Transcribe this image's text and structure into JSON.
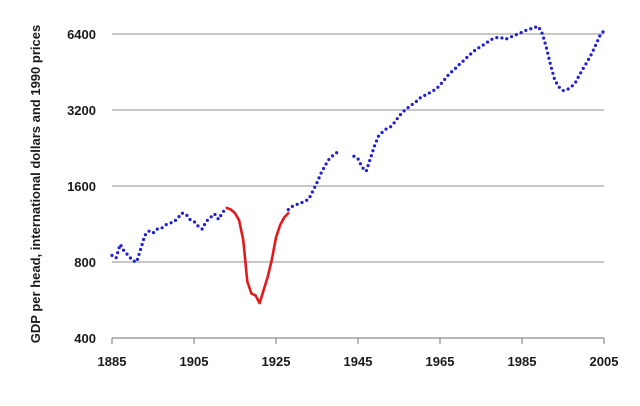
{
  "chart_data": {
    "type": "line",
    "title": "",
    "xlabel": "",
    "ylabel": "GDP per head, international dollars and 1990 prices",
    "y_scale": "log2",
    "xlim": [
      1885,
      2005
    ],
    "ylim": [
      400,
      6400
    ],
    "x_ticks": [
      1885,
      1905,
      1925,
      1945,
      1965,
      1985,
      2005
    ],
    "y_ticks": [
      400,
      800,
      1600,
      3200,
      6400
    ],
    "grid": "horizontal",
    "legend": "none",
    "series": [
      {
        "style": "dotted",
        "color": "#1f1fd6",
        "points": [
          [
            1885,
            850
          ],
          [
            1886,
            830
          ],
          [
            1887,
            940
          ],
          [
            1888,
            880
          ],
          [
            1889,
            850
          ],
          [
            1890,
            810
          ],
          [
            1891,
            800
          ],
          [
            1892,
            900
          ],
          [
            1893,
            1020
          ],
          [
            1894,
            1060
          ],
          [
            1895,
            1040
          ],
          [
            1896,
            1080
          ],
          [
            1897,
            1085
          ],
          [
            1898,
            1120
          ],
          [
            1899,
            1140
          ],
          [
            1900,
            1150
          ],
          [
            1901,
            1190
          ],
          [
            1902,
            1250
          ],
          [
            1903,
            1240
          ],
          [
            1904,
            1180
          ],
          [
            1905,
            1160
          ],
          [
            1906,
            1110
          ],
          [
            1907,
            1080
          ],
          [
            1908,
            1160
          ],
          [
            1909,
            1200
          ],
          [
            1910,
            1240
          ],
          [
            1911,
            1180
          ],
          [
            1912,
            1260
          ],
          [
            1913,
            1310
          ]
        ]
      },
      {
        "style": "solid",
        "color": "#e31a1c",
        "points": [
          [
            1913,
            1310
          ],
          [
            1914,
            1290
          ],
          [
            1915,
            1250
          ],
          [
            1916,
            1170
          ],
          [
            1917,
            980
          ],
          [
            1918,
            670
          ],
          [
            1919,
            600
          ],
          [
            1920,
            590
          ],
          [
            1921,
            550
          ],
          [
            1922,
            620
          ],
          [
            1923,
            700
          ],
          [
            1924,
            820
          ],
          [
            1925,
            1000
          ],
          [
            1926,
            1120
          ],
          [
            1927,
            1200
          ],
          [
            1928,
            1250
          ]
        ]
      },
      {
        "style": "dotted",
        "color": "#1f1fd6",
        "points": [
          [
            1928,
            1290
          ],
          [
            1929,
            1330
          ],
          [
            1930,
            1350
          ],
          [
            1931,
            1370
          ],
          [
            1932,
            1390
          ],
          [
            1933,
            1420
          ],
          [
            1934,
            1530
          ],
          [
            1935,
            1650
          ],
          [
            1936,
            1800
          ],
          [
            1937,
            1930
          ],
          [
            1938,
            2050
          ],
          [
            1939,
            2120
          ],
          [
            1940,
            2180
          ]
        ]
      },
      {
        "style": "dotted",
        "color": "#1f1fd6",
        "points": [
          [
            1944,
            2100
          ],
          [
            1945,
            2050
          ],
          [
            1946,
            1900
          ],
          [
            1947,
            1830
          ],
          [
            1948,
            2050
          ],
          [
            1949,
            2300
          ],
          [
            1950,
            2520
          ],
          [
            1951,
            2620
          ],
          [
            1952,
            2700
          ],
          [
            1953,
            2750
          ],
          [
            1954,
            2870
          ],
          [
            1955,
            3020
          ],
          [
            1956,
            3150
          ],
          [
            1957,
            3250
          ],
          [
            1958,
            3350
          ],
          [
            1959,
            3430
          ],
          [
            1960,
            3560
          ],
          [
            1961,
            3640
          ],
          [
            1962,
            3700
          ],
          [
            1963,
            3800
          ],
          [
            1964,
            3860
          ],
          [
            1965,
            4020
          ],
          [
            1966,
            4200
          ],
          [
            1967,
            4400
          ],
          [
            1968,
            4560
          ],
          [
            1969,
            4720
          ],
          [
            1970,
            4900
          ],
          [
            1971,
            5060
          ],
          [
            1972,
            5250
          ],
          [
            1973,
            5420
          ],
          [
            1974,
            5600
          ],
          [
            1975,
            5700
          ],
          [
            1976,
            5870
          ],
          [
            1977,
            6000
          ],
          [
            1978,
            6150
          ],
          [
            1979,
            6200
          ],
          [
            1980,
            6180
          ],
          [
            1981,
            6100
          ],
          [
            1982,
            6200
          ],
          [
            1983,
            6300
          ],
          [
            1984,
            6400
          ],
          [
            1985,
            6500
          ],
          [
            1986,
            6620
          ],
          [
            1987,
            6700
          ],
          [
            1988,
            6800
          ],
          [
            1989,
            6850
          ],
          [
            1990,
            6400
          ],
          [
            1991,
            5600
          ],
          [
            1992,
            4800
          ],
          [
            1993,
            4200
          ],
          [
            1994,
            3950
          ],
          [
            1995,
            3820
          ],
          [
            1996,
            3850
          ],
          [
            1997,
            3950
          ],
          [
            1998,
            4100
          ],
          [
            1999,
            4400
          ],
          [
            2000,
            4700
          ],
          [
            2001,
            5000
          ],
          [
            2002,
            5350
          ],
          [
            2003,
            5800
          ],
          [
            2004,
            6300
          ],
          [
            2005,
            6600
          ]
        ]
      }
    ]
  }
}
